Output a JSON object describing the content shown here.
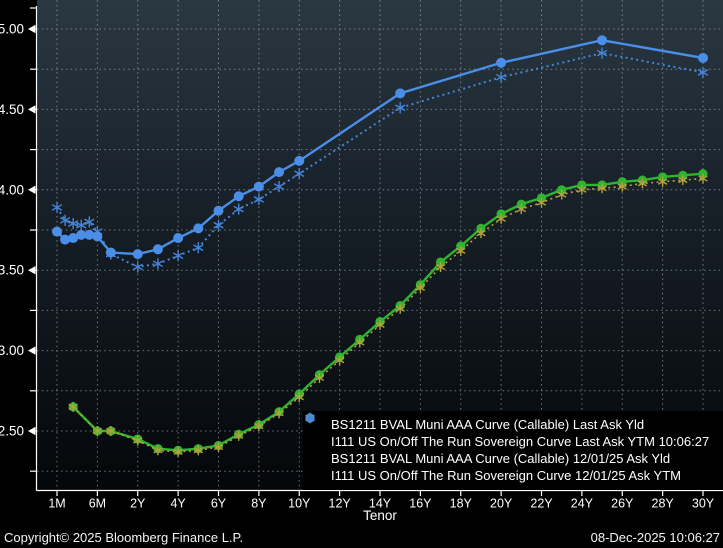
{
  "chart_data": {
    "type": "line",
    "title": "",
    "xlabel": "Tenor",
    "ylabel": "",
    "grid": true,
    "legend_position": "bottom-right",
    "x_ticks": [
      "1M",
      "6M",
      "2Y",
      "4Y",
      "6Y",
      "8Y",
      "10Y",
      "12Y",
      "14Y",
      "16Y",
      "18Y",
      "20Y",
      "22Y",
      "24Y",
      "26Y",
      "28Y",
      "30Y"
    ],
    "y_axis": {
      "min_shown": 2.25,
      "max_shown": 5.0,
      "grid_step": 0.25,
      "labeled_ticks": [
        "2.50",
        "3.00",
        "3.50",
        "4.00",
        "4.50",
        "5.00"
      ]
    },
    "series": [
      {
        "name": "BS1211 BVAL Muni AAA Curve (Callable) Last Ask Yld",
        "color": "#2fb42f",
        "line": "solid",
        "marker": "circle",
        "points": [
          [
            "3M",
            2.65
          ],
          [
            "6M",
            2.5
          ],
          [
            "1Y",
            2.5
          ],
          [
            "2Y",
            2.45
          ],
          [
            "3Y",
            2.39
          ],
          [
            "4Y",
            2.38
          ],
          [
            "5Y",
            2.39
          ],
          [
            "6Y",
            2.41
          ],
          [
            "7Y",
            2.48
          ],
          [
            "8Y",
            2.54
          ],
          [
            "9Y",
            2.62
          ],
          [
            "10Y",
            2.73
          ],
          [
            "11Y",
            2.85
          ],
          [
            "12Y",
            2.96
          ],
          [
            "13Y",
            3.07
          ],
          [
            "14Y",
            3.18
          ],
          [
            "15Y",
            3.28
          ],
          [
            "16Y",
            3.41
          ],
          [
            "17Y",
            3.55
          ],
          [
            "18Y",
            3.65
          ],
          [
            "19Y",
            3.76
          ],
          [
            "20Y",
            3.85
          ],
          [
            "21Y",
            3.91
          ],
          [
            "22Y",
            3.95
          ],
          [
            "23Y",
            4.0
          ],
          [
            "24Y",
            4.03
          ],
          [
            "25Y",
            4.03
          ],
          [
            "26Y",
            4.05
          ],
          [
            "27Y",
            4.06
          ],
          [
            "28Y",
            4.08
          ],
          [
            "29Y",
            4.09
          ],
          [
            "30Y",
            4.1
          ]
        ]
      },
      {
        "name": "I111 US On/Off The Run Sovereign Curve Last Ask YTM 10:06:27",
        "color": "#4a8ee8",
        "line": "solid",
        "marker": "circle",
        "points": [
          [
            "1M",
            3.74
          ],
          [
            "2M",
            3.69
          ],
          [
            "3M",
            3.7
          ],
          [
            "4M",
            3.72
          ],
          [
            "5M",
            3.72
          ],
          [
            "6M",
            3.71
          ],
          [
            "1Y",
            3.61
          ],
          [
            "2Y",
            3.6
          ],
          [
            "3Y",
            3.63
          ],
          [
            "4Y",
            3.7
          ],
          [
            "5Y",
            3.76
          ],
          [
            "6Y",
            3.87
          ],
          [
            "7Y",
            3.96
          ],
          [
            "8Y",
            4.02
          ],
          [
            "9Y",
            4.11
          ],
          [
            "10Y",
            4.18
          ],
          [
            "15Y",
            4.6
          ],
          [
            "20Y",
            4.79
          ],
          [
            "25Y",
            4.93
          ],
          [
            "30Y",
            4.82
          ]
        ]
      },
      {
        "name": "BS1211 BVAL Muni AAA Curve (Callable) 12/01/25 Ask Yld",
        "color": "#b3a23c",
        "line": "dotted",
        "marker": "asterisk",
        "points": [
          [
            "3M",
            2.65
          ],
          [
            "6M",
            2.5
          ],
          [
            "1Y",
            2.5
          ],
          [
            "2Y",
            2.44
          ],
          [
            "3Y",
            2.38
          ],
          [
            "4Y",
            2.37
          ],
          [
            "5Y",
            2.38
          ],
          [
            "6Y",
            2.4
          ],
          [
            "7Y",
            2.47
          ],
          [
            "8Y",
            2.53
          ],
          [
            "9Y",
            2.61
          ],
          [
            "10Y",
            2.71
          ],
          [
            "11Y",
            2.83
          ],
          [
            "12Y",
            2.94
          ],
          [
            "13Y",
            3.05
          ],
          [
            "14Y",
            3.16
          ],
          [
            "15Y",
            3.26
          ],
          [
            "16Y",
            3.39
          ],
          [
            "17Y",
            3.52
          ],
          [
            "18Y",
            3.62
          ],
          [
            "19Y",
            3.73
          ],
          [
            "20Y",
            3.82
          ],
          [
            "21Y",
            3.88
          ],
          [
            "22Y",
            3.92
          ],
          [
            "23Y",
            3.97
          ],
          [
            "24Y",
            4.0
          ],
          [
            "25Y",
            4.01
          ],
          [
            "26Y",
            4.02
          ],
          [
            "27Y",
            4.04
          ],
          [
            "28Y",
            4.05
          ],
          [
            "29Y",
            4.06
          ],
          [
            "30Y",
            4.07
          ]
        ]
      },
      {
        "name": "I111 US On/Off The Run Sovereign Curve 12/01/25 Ask YTM",
        "color": "#4585d8",
        "line": "dotted",
        "marker": "asterisk",
        "points": [
          [
            "1M",
            3.89
          ],
          [
            "2M",
            3.81
          ],
          [
            "3M",
            3.79
          ],
          [
            "4M",
            3.78
          ],
          [
            "5M",
            3.8
          ],
          [
            "6M",
            3.74
          ],
          [
            "1Y",
            3.6
          ],
          [
            "2Y",
            3.52
          ],
          [
            "3Y",
            3.54
          ],
          [
            "4Y",
            3.59
          ],
          [
            "5Y",
            3.64
          ],
          [
            "6Y",
            3.78
          ],
          [
            "7Y",
            3.88
          ],
          [
            "8Y",
            3.94
          ],
          [
            "9Y",
            4.02
          ],
          [
            "10Y",
            4.1
          ],
          [
            "15Y",
            4.51
          ],
          [
            "20Y",
            4.7
          ],
          [
            "25Y",
            4.85
          ],
          [
            "30Y",
            4.73
          ]
        ]
      }
    ]
  },
  "footer": {
    "copyright": "Copyright© 2025 Bloomberg Finance L.P.",
    "datetime": "08-Dec-2025 10:06:27"
  },
  "style": {
    "plot_bg_top": "#2a3842",
    "plot_bg_mid": "#161e26",
    "plot_bg_bottom": "#04070a",
    "grid_color": "#b9bec4",
    "axis_color": "#ffffff"
  }
}
